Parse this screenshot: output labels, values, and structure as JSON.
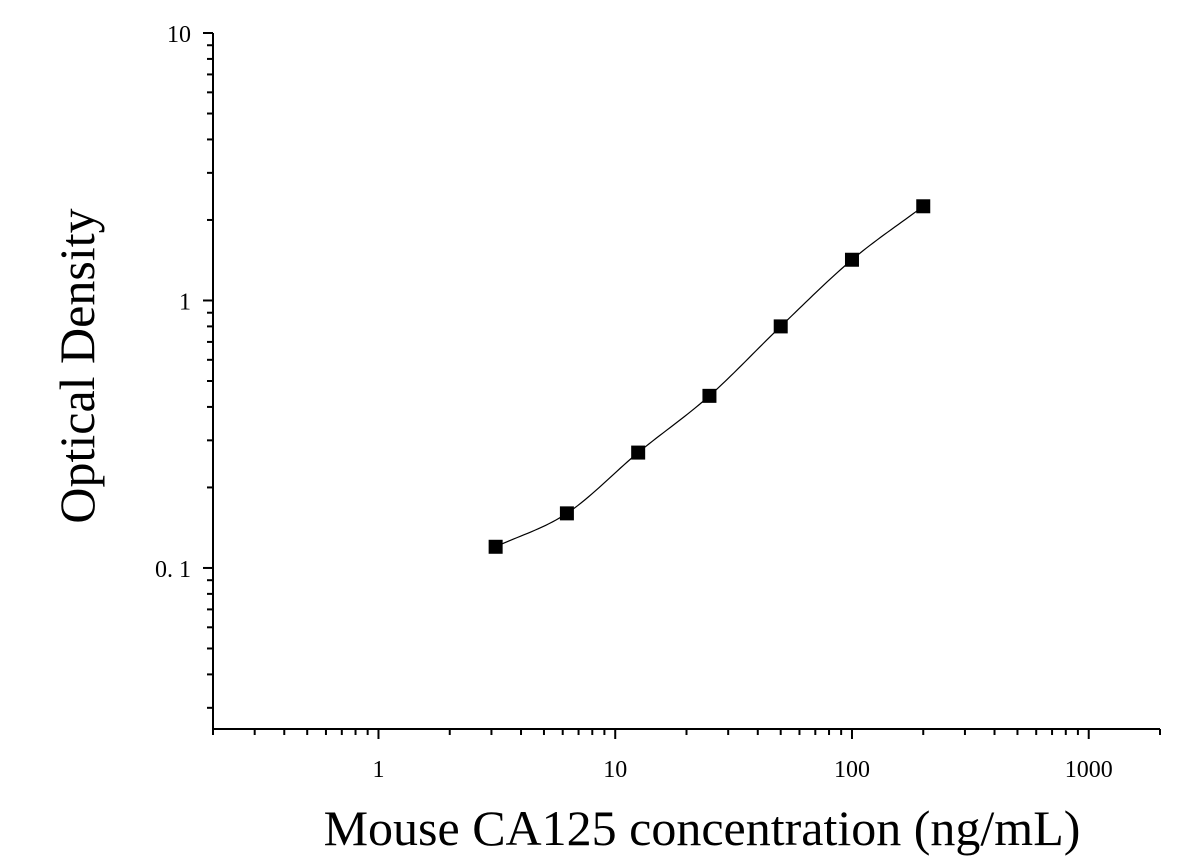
{
  "chart_data": {
    "type": "scatter",
    "xlabel": "Mouse CA125 concentration (ng/mL)",
    "ylabel": "Optical Density",
    "x_scale": "log",
    "y_scale": "log",
    "xlim": [
      0.2,
      2000
    ],
    "ylim": [
      0.025,
      10
    ],
    "x_ticks": [
      {
        "value": 1,
        "label": "1"
      },
      {
        "value": 10,
        "label": "10"
      },
      {
        "value": 100,
        "label": "100"
      },
      {
        "value": 1000,
        "label": "1000"
      }
    ],
    "y_ticks": [
      {
        "value": 0.1,
        "label": "0. 1"
      },
      {
        "value": 1,
        "label": "1"
      },
      {
        "value": 10,
        "label": "10"
      }
    ],
    "grid": false,
    "legend": "none",
    "series": [
      {
        "marker": "square",
        "color": "#000000",
        "x": [
          3.125,
          6.25,
          12.5,
          25,
          50,
          100,
          200
        ],
        "y": [
          0.12,
          0.16,
          0.27,
          0.44,
          0.8,
          1.42,
          2.25
        ]
      }
    ],
    "fit_curve": {
      "type": "smooth",
      "color": "#000000"
    }
  }
}
